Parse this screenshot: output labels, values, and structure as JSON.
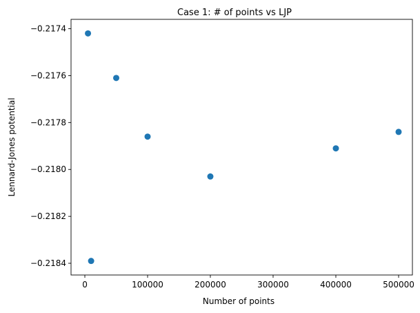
{
  "chart_data": {
    "type": "scatter",
    "title": "Case 1: # of points vs LJP",
    "xlabel": "Number of points",
    "ylabel": "Lennard-Jones potential",
    "xlim": [
      -22000,
      522000
    ],
    "ylim": [
      -0.21845,
      -0.21736
    ],
    "xticks": [
      0,
      100000,
      200000,
      300000,
      400000,
      500000
    ],
    "xtick_labels": [
      "0",
      "100000",
      "200000",
      "300000",
      "400000",
      "500000"
    ],
    "yticks": [
      -0.2184,
      -0.2182,
      -0.218,
      -0.2178,
      -0.2176,
      -0.2174
    ],
    "ytick_labels": [
      "−0.2184",
      "−0.2182",
      "−0.2180",
      "−0.2178",
      "−0.2176",
      "−0.2174"
    ],
    "grid": false,
    "marker_color": "#1f77b4",
    "points": [
      {
        "x": 5000,
        "y": -0.21742
      },
      {
        "x": 10000,
        "y": -0.21839
      },
      {
        "x": 50000,
        "y": -0.21761
      },
      {
        "x": 100000,
        "y": -0.21786
      },
      {
        "x": 200000,
        "y": -0.21803
      },
      {
        "x": 400000,
        "y": -0.21791
      },
      {
        "x": 500000,
        "y": -0.21784
      }
    ]
  }
}
